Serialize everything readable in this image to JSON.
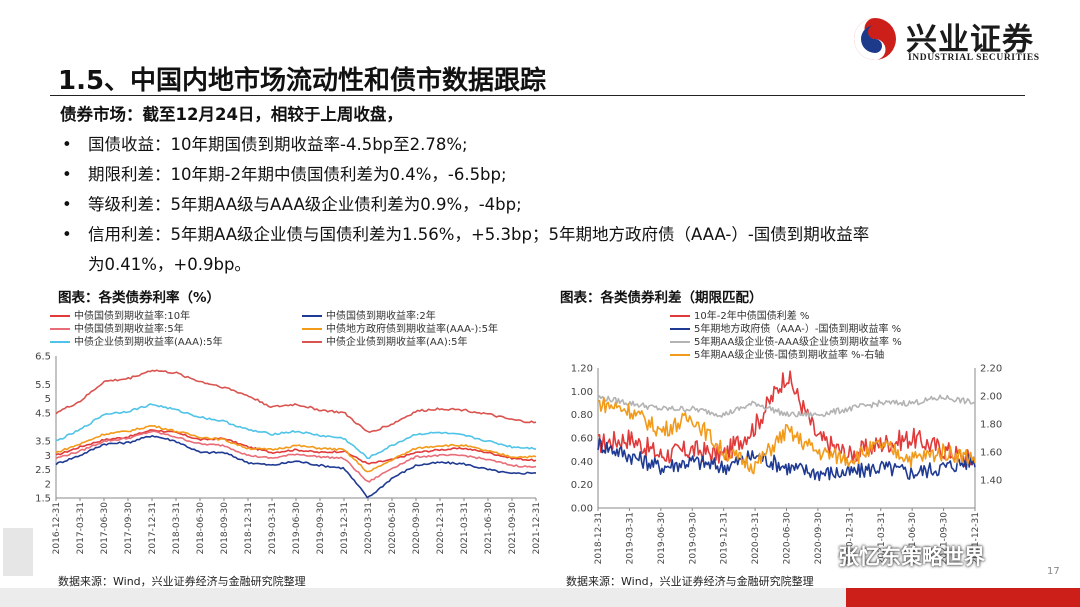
{
  "brand": {
    "name_cn": "兴业证券",
    "name_en": "INDUSTRIAL SECURITIES",
    "red": "#cc1f1a",
    "blue": "#1d3a8a"
  },
  "slide": {
    "title": "1.5、中国内地市场流动性和债市数据跟踪",
    "intro": "债券市场：截至12月24日，相较于上周收盘，",
    "bullets": [
      "国债收益：10年期国债到期收益率-4.5bp至2.78%;",
      "期限利差：10年期-2年期中债国债利差为0.4%，-6.5bp;",
      "等级利差：5年期AA级与AAA级企业债利差为0.9%，-4bp;",
      "信用利差：5年期AA级企业债与国债利差为1.56%，+5.3bp；5年期地方政府债（AAA-）-国债到期收益率"
    ],
    "bullet_cont": "为0.41%，+0.9bp。",
    "page_number": "17",
    "watermark": "张忆东策略世界"
  },
  "chart_data": [
    {
      "type": "line",
      "title": "图表：各类债券利率（%）",
      "source": "数据来源：Wind，兴业证券经济与金融研究院整理",
      "x": [
        "2016-12-31",
        "2017-03-31",
        "2017-06-30",
        "2017-09-30",
        "2017-12-31",
        "2018-03-31",
        "2018-06-30",
        "2018-09-30",
        "2018-12-31",
        "2019-03-31",
        "2019-06-30",
        "2019-09-30",
        "2019-12-31",
        "2020-03-31",
        "2020-06-30",
        "2020-09-30",
        "2020-12-31",
        "2021-03-31",
        "2021-06-30",
        "2021-09-30",
        "2021-12-31"
      ],
      "ylim": [
        1.5,
        6.5
      ],
      "yticks": [
        "6.5",
        "5.5",
        "5",
        "4.5",
        "3.5",
        "3",
        "2.5",
        "2",
        "1.5"
      ],
      "ytick_values": [
        6.5,
        5.5,
        5,
        4.5,
        3.5,
        3,
        2.5,
        2,
        1.5
      ],
      "series": [
        {
          "name": "中债国债到期收益率:10年",
          "color": "#e03a3a",
          "values": [
            3.0,
            3.3,
            3.55,
            3.65,
            3.9,
            3.8,
            3.55,
            3.6,
            3.3,
            3.1,
            3.2,
            3.1,
            3.15,
            2.7,
            2.85,
            3.1,
            3.2,
            3.25,
            3.1,
            2.9,
            2.82
          ]
        },
        {
          "name": "中债国债到期收益率:2年",
          "color": "#1f3a93",
          "values": [
            2.7,
            3.0,
            3.4,
            3.45,
            3.7,
            3.5,
            3.1,
            3.1,
            2.75,
            2.65,
            2.8,
            2.65,
            2.55,
            1.5,
            2.2,
            2.65,
            2.75,
            2.7,
            2.5,
            2.35,
            2.4
          ]
        },
        {
          "name": "中债国债到期收益率:5年",
          "color": "#e96d78",
          "values": [
            2.9,
            3.15,
            3.5,
            3.6,
            3.85,
            3.65,
            3.4,
            3.35,
            3.0,
            2.9,
            3.05,
            2.95,
            2.9,
            2.05,
            2.55,
            2.95,
            3.0,
            3.0,
            2.85,
            2.65,
            2.58
          ]
        },
        {
          "name": "中债地方政府债到期收益率(AAA-):5年",
          "color": "#f29a1a",
          "values": [
            3.1,
            3.4,
            3.75,
            3.85,
            4.05,
            3.85,
            3.65,
            3.55,
            3.25,
            3.2,
            3.35,
            3.25,
            3.2,
            2.4,
            2.85,
            3.25,
            3.35,
            3.35,
            3.15,
            2.95,
            2.95
          ]
        },
        {
          "name": "中债企业债到期收益率(AAA):5年",
          "color": "#4fc3e8",
          "values": [
            3.5,
            3.9,
            4.45,
            4.55,
            4.8,
            4.6,
            4.35,
            4.2,
            3.9,
            3.75,
            3.85,
            3.7,
            3.6,
            2.9,
            3.35,
            3.75,
            3.8,
            3.7,
            3.5,
            3.3,
            3.25
          ]
        },
        {
          "name": "中债企业债到期收益率(AA):5年",
          "color": "#d9534f",
          "values": [
            4.5,
            4.9,
            5.6,
            5.7,
            6.0,
            5.9,
            5.6,
            5.4,
            5.1,
            4.7,
            4.8,
            4.6,
            4.5,
            3.8,
            4.1,
            4.55,
            4.65,
            4.6,
            4.45,
            4.25,
            4.15
          ]
        }
      ]
    },
    {
      "type": "line",
      "title": "图表：各类债券利差（期限匹配）",
      "source": "数据来源：Wind，兴业证券经济与金融研究院整理",
      "x": [
        "2018-12-31",
        "2019-03-31",
        "2019-06-30",
        "2019-09-30",
        "2019-12-31",
        "2020-03-31",
        "2020-06-30",
        "2020-09-30",
        "2020-12-31",
        "2021-03-31",
        "2021-06-30",
        "2021-09-30",
        "2021-12-31"
      ],
      "ylim_left": [
        0,
        1.2
      ],
      "ylim_right": [
        1.2,
        2.2
      ],
      "yticks_left": [
        "1.20",
        "1.00",
        "0.80",
        "0.60",
        "0.40",
        "0.20",
        "0.00"
      ],
      "yticks_left_values": [
        1.2,
        1.0,
        0.8,
        0.6,
        0.4,
        0.2,
        0.0
      ],
      "yticks_right": [
        "2.20",
        "2.00",
        "1.80",
        "1.60",
        "1.40"
      ],
      "yticks_right_values": [
        2.2,
        2.0,
        1.8,
        1.6,
        1.4
      ],
      "series": [
        {
          "name": "10年-2年中债国债利差 %",
          "color": "#e03a3a",
          "axis": "left",
          "values": [
            0.55,
            0.6,
            0.45,
            0.5,
            0.45,
            0.7,
            1.15,
            0.6,
            0.45,
            0.55,
            0.6,
            0.5,
            0.4
          ]
        },
        {
          "name": "5年期地方政府债（AAA-）-国债到期收益率 %",
          "color": "#1f3a93",
          "axis": "left",
          "values": [
            0.55,
            0.45,
            0.35,
            0.4,
            0.35,
            0.45,
            0.35,
            0.3,
            0.3,
            0.35,
            0.3,
            0.35,
            0.41
          ]
        },
        {
          "name": "5年期AA级企业债-AAA级企业债到期收益率 %",
          "color": "#b3b3b3",
          "axis": "left",
          "values": [
            0.95,
            0.9,
            0.85,
            0.85,
            0.8,
            0.9,
            0.8,
            0.8,
            0.85,
            0.9,
            0.9,
            0.95,
            0.9
          ]
        },
        {
          "name": "5年期AA级企业债-国债到期收益率 %-右轴",
          "color": "#f29a1a",
          "axis": "right",
          "values": [
            1.95,
            1.9,
            1.75,
            1.85,
            1.6,
            1.5,
            1.75,
            1.6,
            1.55,
            1.65,
            1.55,
            1.6,
            1.56
          ]
        }
      ]
    }
  ]
}
